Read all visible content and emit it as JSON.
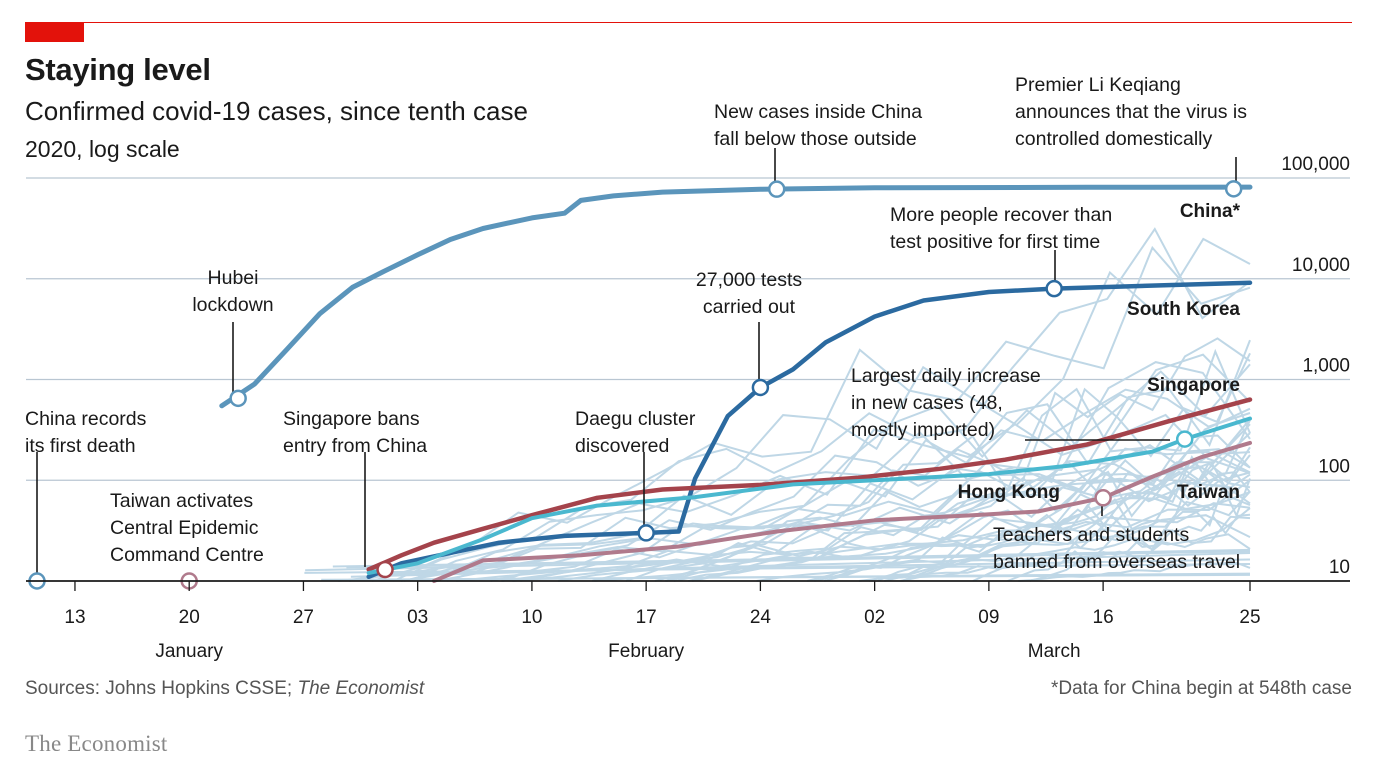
{
  "header": {
    "title": "Staying level",
    "subtitle": "Confirmed covid-19 cases, since tenth case",
    "subsubtitle": "2020, log scale"
  },
  "footer": {
    "source_prefix": "Sources: Johns Hopkins CSSE; ",
    "source_italic": "The Economist",
    "note": "*Data for China begin at 548th case",
    "logo": "The Economist"
  },
  "colors": {
    "accent": "#e3120b",
    "china": "#5b95bb",
    "south_korea": "#2b6aa0",
    "singapore": "#a4434b",
    "hong_kong": "#4ab8cf",
    "taiwan": "#b07a8c",
    "others": "#bfd7e6",
    "grid": "#b9c6d2"
  },
  "chart_data": {
    "type": "line",
    "title": "Staying level",
    "subtitle": "Confirmed covid-19 cases, since tenth case",
    "scale": "log",
    "ylim": [
      10,
      100000
    ],
    "y_ticks": [
      {
        "value": 100000,
        "label": "100,000"
      },
      {
        "value": 10000,
        "label": "10,000"
      },
      {
        "value": 1000,
        "label": "1,000"
      },
      {
        "value": 100,
        "label": "100"
      },
      {
        "value": 10,
        "label": "10"
      }
    ],
    "xlim": [
      "2020-01-10",
      "2020-03-25"
    ],
    "x_ticks": [
      {
        "date": "2020-01-13",
        "label": "13"
      },
      {
        "date": "2020-01-20",
        "label": "20"
      },
      {
        "date": "2020-01-27",
        "label": "27"
      },
      {
        "date": "2020-02-03",
        "label": "03"
      },
      {
        "date": "2020-02-10",
        "label": "10"
      },
      {
        "date": "2020-02-17",
        "label": "17"
      },
      {
        "date": "2020-02-24",
        "label": "24"
      },
      {
        "date": "2020-03-02",
        "label": "02"
      },
      {
        "date": "2020-03-09",
        "label": "09"
      },
      {
        "date": "2020-03-16",
        "label": "16"
      },
      {
        "date": "2020-03-25",
        "label": "25"
      }
    ],
    "month_labels": [
      {
        "date": "2020-01-20",
        "label": "January"
      },
      {
        "date": "2020-02-17",
        "label": "February"
      },
      {
        "date": "2020-03-13",
        "label": "March"
      }
    ],
    "series": [
      {
        "name": "China*",
        "key": "china",
        "points": [
          [
            "2020-01-22",
            548
          ],
          [
            "2020-01-24",
            900
          ],
          [
            "2020-01-26",
            2000
          ],
          [
            "2020-01-28",
            4500
          ],
          [
            "2020-01-30",
            8200
          ],
          [
            "2020-02-01",
            12000
          ],
          [
            "2020-02-03",
            17300
          ],
          [
            "2020-02-05",
            24500
          ],
          [
            "2020-02-07",
            31500
          ],
          [
            "2020-02-10",
            40200
          ],
          [
            "2020-02-12",
            44700
          ],
          [
            "2020-02-13",
            60000
          ],
          [
            "2020-02-15",
            66500
          ],
          [
            "2020-02-18",
            72500
          ],
          [
            "2020-02-24",
            77200
          ],
          [
            "2020-03-02",
            80000
          ],
          [
            "2020-03-15",
            80850
          ],
          [
            "2020-03-25",
            81200
          ]
        ]
      },
      {
        "name": "South Korea",
        "key": "south_korea",
        "points": [
          [
            "2020-01-31",
            11
          ],
          [
            "2020-02-02",
            15
          ],
          [
            "2020-02-05",
            19
          ],
          [
            "2020-02-08",
            24
          ],
          [
            "2020-02-12",
            28
          ],
          [
            "2020-02-17",
            30
          ],
          [
            "2020-02-19",
            31
          ],
          [
            "2020-02-20",
            104
          ],
          [
            "2020-02-22",
            433
          ],
          [
            "2020-02-24",
            833
          ],
          [
            "2020-02-26",
            1261
          ],
          [
            "2020-02-28",
            2337
          ],
          [
            "2020-03-02",
            4212
          ],
          [
            "2020-03-05",
            6088
          ],
          [
            "2020-03-09",
            7382
          ],
          [
            "2020-03-13",
            7979
          ],
          [
            "2020-03-20",
            8652
          ],
          [
            "2020-03-25",
            9137
          ]
        ]
      },
      {
        "name": "Singapore",
        "key": "singapore",
        "points": [
          [
            "2020-01-31",
            13
          ],
          [
            "2020-02-02",
            18
          ],
          [
            "2020-02-04",
            24
          ],
          [
            "2020-02-07",
            33
          ],
          [
            "2020-02-10",
            45
          ],
          [
            "2020-02-14",
            67
          ],
          [
            "2020-02-18",
            81
          ],
          [
            "2020-02-24",
            90
          ],
          [
            "2020-03-01",
            106
          ],
          [
            "2020-03-06",
            130
          ],
          [
            "2020-03-10",
            160
          ],
          [
            "2020-03-15",
            226
          ],
          [
            "2020-03-20",
            385
          ],
          [
            "2020-03-25",
            631
          ]
        ]
      },
      {
        "name": "Hong Kong",
        "key": "hong_kong",
        "points": [
          [
            "2020-01-31",
            12
          ],
          [
            "2020-02-03",
            15
          ],
          [
            "2020-02-07",
            26
          ],
          [
            "2020-02-10",
            42
          ],
          [
            "2020-02-14",
            56
          ],
          [
            "2020-02-20",
            68
          ],
          [
            "2020-02-26",
            91
          ],
          [
            "2020-03-02",
            100
          ],
          [
            "2020-03-09",
            115
          ],
          [
            "2020-03-14",
            140
          ],
          [
            "2020-03-19",
            192
          ],
          [
            "2020-03-21",
            256
          ],
          [
            "2020-03-25",
            410
          ]
        ]
      },
      {
        "name": "Taiwan",
        "key": "taiwan",
        "points": [
          [
            "2020-02-04",
            10
          ],
          [
            "2020-02-07",
            16
          ],
          [
            "2020-02-13",
            18
          ],
          [
            "2020-02-19",
            22
          ],
          [
            "2020-02-25",
            31
          ],
          [
            "2020-03-02",
            40
          ],
          [
            "2020-03-08",
            45
          ],
          [
            "2020-03-12",
            49
          ],
          [
            "2020-03-16",
            67
          ],
          [
            "2020-03-19",
            108
          ],
          [
            "2020-03-22",
            169
          ],
          [
            "2020-03-25",
            235
          ]
        ]
      }
    ],
    "other_series_count": 40,
    "series_labels": [
      {
        "text": "China*",
        "key": "china"
      },
      {
        "text": "South Korea",
        "key": "south_korea"
      },
      {
        "text": "Singapore",
        "key": "singapore"
      },
      {
        "text": "Hong Kong",
        "key": "hong_kong"
      },
      {
        "text": "Taiwan",
        "key": "taiwan"
      }
    ],
    "annotations": [
      {
        "id": "ann_first_death",
        "series": "china_first_death",
        "date": "2020-01-11",
        "value": 10,
        "color_key": "china",
        "lines": [
          "China records",
          "its first death"
        ]
      },
      {
        "id": "ann_taiwan_cecc",
        "date": "2020-01-20",
        "value": 10,
        "color_key": "taiwan",
        "lines": [
          "Taiwan activates",
          "Central Epidemic",
          "Command Centre"
        ]
      },
      {
        "id": "ann_hubei",
        "date": "2020-01-23",
        "value": 650,
        "color_key": "china",
        "lines": [
          "Hubei",
          "lockdown"
        ]
      },
      {
        "id": "ann_singapore_ban",
        "date": "2020-02-01",
        "value": 13,
        "color_key": "singapore",
        "lines": [
          "Singapore bans",
          "entry from China"
        ]
      },
      {
        "id": "ann_daegu",
        "date": "2020-02-17",
        "value": 30,
        "color_key": "south_korea",
        "lines": [
          "Daegu cluster",
          "discovered"
        ]
      },
      {
        "id": "ann_china_cross",
        "date": "2020-02-25",
        "value": 77500,
        "color_key": "china",
        "lines": [
          "New cases inside China",
          "fall below those outside"
        ]
      },
      {
        "id": "ann_tests",
        "date": "2020-02-24",
        "value": 833,
        "color_key": "south_korea",
        "lines": [
          "27,000 tests",
          "carried out"
        ]
      },
      {
        "id": "ann_recover",
        "date": "2020-03-13",
        "value": 7979,
        "color_key": "south_korea",
        "lines": [
          "More people recover than",
          "test positive for first time"
        ]
      },
      {
        "id": "ann_li",
        "date": "2020-03-24",
        "value": 78000,
        "color_key": "china",
        "lines": [
          "Premier Li Keqiang",
          "announces that the virus is",
          "controlled domestically"
        ]
      },
      {
        "id": "ann_singapore_peak",
        "date": "2020-03-21",
        "value": 256,
        "color_key": "hong_kong",
        "lines": [
          "Largest daily increase",
          "in new cases (48,",
          "mostly imported)"
        ]
      },
      {
        "id": "ann_taiwan_travel",
        "date": "2020-03-16",
        "value": 67,
        "color_key": "taiwan",
        "lines": [
          "Teachers and students",
          "banned from overseas travel"
        ]
      }
    ]
  }
}
